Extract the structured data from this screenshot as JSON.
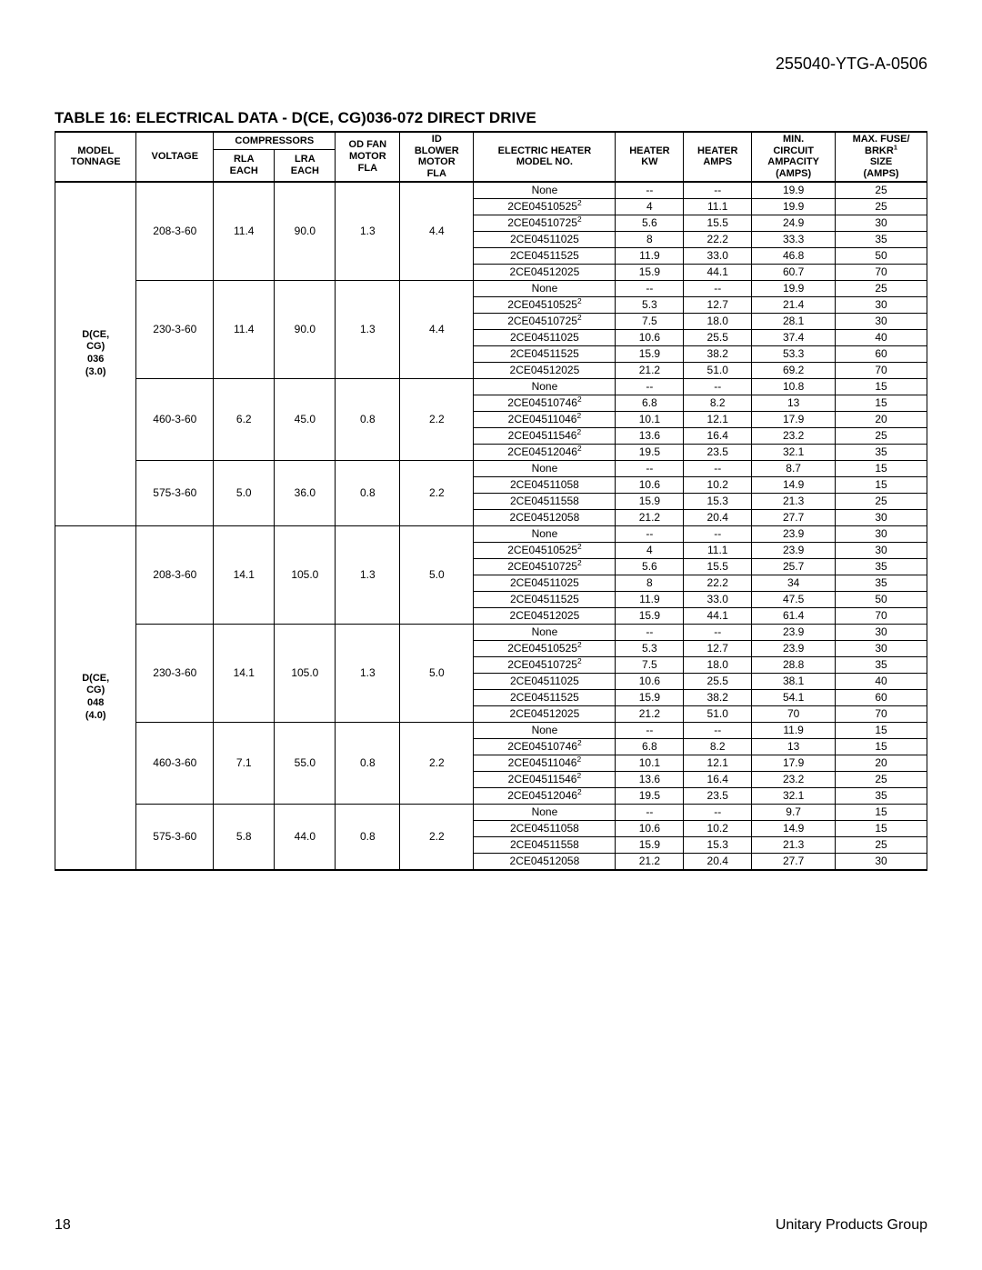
{
  "docId": "255040-YTG-A-0506",
  "tableTitle": "TABLE 16: ELECTRICAL DATA - D(CE, CG)036-072 DIRECT DRIVE",
  "footerLeft": "18",
  "footerRight": "Unitary Products Group",
  "headers": {
    "modelTonnage": "MODEL TONNAGE",
    "voltage": "VOLTAGE",
    "compressors": "COMPRESSORS",
    "rlaEach": "RLA EACH",
    "lraEach": "LRA EACH",
    "odFanMotorFla": "OD FAN MOTOR FLA",
    "idBlowerMotorFla": "ID BLOWER MOTOR FLA",
    "electricHeaterModel": "ELECTRIC HEATER MODEL NO.",
    "heaterKw": "HEATER KW",
    "heaterAmps": "HEATER AMPS",
    "minCircuitAmpacity": "MIN. CIRCUIT AMPACITY (AMPS)",
    "maxFuseBrkrSize": "MAX. FUSE/ BRKR¹ SIZE (AMPS)"
  },
  "modelBlocks": [
    {
      "model": "D(CE, CG) 036 (3.0)",
      "voltages": [
        {
          "voltage": "208-3-60",
          "rla": "11.4",
          "lra": "90.0",
          "odFan": "1.3",
          "idBlower": "4.4",
          "rows": [
            {
              "heaterModel": "None",
              "sup": "",
              "kw": "--",
              "amps": "--",
              "mca": "19.9",
              "fuse": "25"
            },
            {
              "heaterModel": "2CE04510525",
              "sup": "2",
              "kw": "4",
              "amps": "11.1",
              "mca": "19.9",
              "fuse": "25"
            },
            {
              "heaterModel": "2CE04510725",
              "sup": "2",
              "kw": "5.6",
              "amps": "15.5",
              "mca": "24.9",
              "fuse": "30"
            },
            {
              "heaterModel": "2CE04511025",
              "sup": "",
              "kw": "8",
              "amps": "22.2",
              "mca": "33.3",
              "fuse": "35"
            },
            {
              "heaterModel": "2CE04511525",
              "sup": "",
              "kw": "11.9",
              "amps": "33.0",
              "mca": "46.8",
              "fuse": "50"
            },
            {
              "heaterModel": "2CE04512025",
              "sup": "",
              "kw": "15.9",
              "amps": "44.1",
              "mca": "60.7",
              "fuse": "70"
            }
          ]
        },
        {
          "voltage": "230-3-60",
          "rla": "11.4",
          "lra": "90.0",
          "odFan": "1.3",
          "idBlower": "4.4",
          "rows": [
            {
              "heaterModel": "None",
              "sup": "",
              "kw": "--",
              "amps": "--",
              "mca": "19.9",
              "fuse": "25"
            },
            {
              "heaterModel": "2CE04510525",
              "sup": "2",
              "kw": "5.3",
              "amps": "12.7",
              "mca": "21.4",
              "fuse": "30"
            },
            {
              "heaterModel": "2CE04510725",
              "sup": "2",
              "kw": "7.5",
              "amps": "18.0",
              "mca": "28.1",
              "fuse": "30"
            },
            {
              "heaterModel": "2CE04511025",
              "sup": "",
              "kw": "10.6",
              "amps": "25.5",
              "mca": "37.4",
              "fuse": "40"
            },
            {
              "heaterModel": "2CE04511525",
              "sup": "",
              "kw": "15.9",
              "amps": "38.2",
              "mca": "53.3",
              "fuse": "60"
            },
            {
              "heaterModel": "2CE04512025",
              "sup": "",
              "kw": "21.2",
              "amps": "51.0",
              "mca": "69.2",
              "fuse": "70"
            }
          ]
        },
        {
          "voltage": "460-3-60",
          "rla": "6.2",
          "lra": "45.0",
          "odFan": "0.8",
          "idBlower": "2.2",
          "rows": [
            {
              "heaterModel": "None",
              "sup": "",
              "kw": "--",
              "amps": "--",
              "mca": "10.8",
              "fuse": "15"
            },
            {
              "heaterModel": "2CE04510746",
              "sup": "2",
              "kw": "6.8",
              "amps": "8.2",
              "mca": "13",
              "fuse": "15"
            },
            {
              "heaterModel": "2CE04511046",
              "sup": "2",
              "kw": "10.1",
              "amps": "12.1",
              "mca": "17.9",
              "fuse": "20"
            },
            {
              "heaterModel": "2CE04511546",
              "sup": "2",
              "kw": "13.6",
              "amps": "16.4",
              "mca": "23.2",
              "fuse": "25"
            },
            {
              "heaterModel": "2CE04512046",
              "sup": "2",
              "kw": "19.5",
              "amps": "23.5",
              "mca": "32.1",
              "fuse": "35"
            }
          ]
        },
        {
          "voltage": "575-3-60",
          "rla": "5.0",
          "lra": "36.0",
          "odFan": "0.8",
          "idBlower": "2.2",
          "rows": [
            {
              "heaterModel": "None",
              "sup": "",
              "kw": "--",
              "amps": "--",
              "mca": "8.7",
              "fuse": "15"
            },
            {
              "heaterModel": "2CE04511058",
              "sup": "",
              "kw": "10.6",
              "amps": "10.2",
              "mca": "14.9",
              "fuse": "15"
            },
            {
              "heaterModel": "2CE04511558",
              "sup": "",
              "kw": "15.9",
              "amps": "15.3",
              "mca": "21.3",
              "fuse": "25"
            },
            {
              "heaterModel": "2CE04512058",
              "sup": "",
              "kw": "21.2",
              "amps": "20.4",
              "mca": "27.7",
              "fuse": "30"
            }
          ]
        }
      ]
    },
    {
      "model": "D(CE, CG) 048 (4.0)",
      "voltages": [
        {
          "voltage": "208-3-60",
          "rla": "14.1",
          "lra": "105.0",
          "odFan": "1.3",
          "idBlower": "5.0",
          "rows": [
            {
              "heaterModel": "None",
              "sup": "",
              "kw": "--",
              "amps": "--",
              "mca": "23.9",
              "fuse": "30"
            },
            {
              "heaterModel": "2CE04510525",
              "sup": "2",
              "kw": "4",
              "amps": "11.1",
              "mca": "23.9",
              "fuse": "30"
            },
            {
              "heaterModel": "2CE04510725",
              "sup": "2",
              "kw": "5.6",
              "amps": "15.5",
              "mca": "25.7",
              "fuse": "35"
            },
            {
              "heaterModel": "2CE04511025",
              "sup": "",
              "kw": "8",
              "amps": "22.2",
              "mca": "34",
              "fuse": "35"
            },
            {
              "heaterModel": "2CE04511525",
              "sup": "",
              "kw": "11.9",
              "amps": "33.0",
              "mca": "47.5",
              "fuse": "50"
            },
            {
              "heaterModel": "2CE04512025",
              "sup": "",
              "kw": "15.9",
              "amps": "44.1",
              "mca": "61.4",
              "fuse": "70"
            }
          ]
        },
        {
          "voltage": "230-3-60",
          "rla": "14.1",
          "lra": "105.0",
          "odFan": "1.3",
          "idBlower": "5.0",
          "rows": [
            {
              "heaterModel": "None",
              "sup": "",
              "kw": "--",
              "amps": "--",
              "mca": "23.9",
              "fuse": "30"
            },
            {
              "heaterModel": "2CE04510525",
              "sup": "2",
              "kw": "5.3",
              "amps": "12.7",
              "mca": "23.9",
              "fuse": "30"
            },
            {
              "heaterModel": "2CE04510725",
              "sup": "2",
              "kw": "7.5",
              "amps": "18.0",
              "mca": "28.8",
              "fuse": "35"
            },
            {
              "heaterModel": "2CE04511025",
              "sup": "",
              "kw": "10.6",
              "amps": "25.5",
              "mca": "38.1",
              "fuse": "40"
            },
            {
              "heaterModel": "2CE04511525",
              "sup": "",
              "kw": "15.9",
              "amps": "38.2",
              "mca": "54.1",
              "fuse": "60"
            },
            {
              "heaterModel": "2CE04512025",
              "sup": "",
              "kw": "21.2",
              "amps": "51.0",
              "mca": "70",
              "fuse": "70"
            }
          ]
        },
        {
          "voltage": "460-3-60",
          "rla": "7.1",
          "lra": "55.0",
          "odFan": "0.8",
          "idBlower": "2.2",
          "rows": [
            {
              "heaterModel": "None",
              "sup": "",
              "kw": "--",
              "amps": "--",
              "mca": "11.9",
              "fuse": "15"
            },
            {
              "heaterModel": "2CE04510746",
              "sup": "2",
              "kw": "6.8",
              "amps": "8.2",
              "mca": "13",
              "fuse": "15"
            },
            {
              "heaterModel": "2CE04511046",
              "sup": "2",
              "kw": "10.1",
              "amps": "12.1",
              "mca": "17.9",
              "fuse": "20"
            },
            {
              "heaterModel": "2CE04511546",
              "sup": "2",
              "kw": "13.6",
              "amps": "16.4",
              "mca": "23.2",
              "fuse": "25"
            },
            {
              "heaterModel": "2CE04512046",
              "sup": "2",
              "kw": "19.5",
              "amps": "23.5",
              "mca": "32.1",
              "fuse": "35"
            }
          ]
        },
        {
          "voltage": "575-3-60",
          "rla": "5.8",
          "lra": "44.0",
          "odFan": "0.8",
          "idBlower": "2.2",
          "rows": [
            {
              "heaterModel": "None",
              "sup": "",
              "kw": "--",
              "amps": "--",
              "mca": "9.7",
              "fuse": "15"
            },
            {
              "heaterModel": "2CE04511058",
              "sup": "",
              "kw": "10.6",
              "amps": "10.2",
              "mca": "14.9",
              "fuse": "15"
            },
            {
              "heaterModel": "2CE04511558",
              "sup": "",
              "kw": "15.9",
              "amps": "15.3",
              "mca": "21.3",
              "fuse": "25"
            },
            {
              "heaterModel": "2CE04512058",
              "sup": "",
              "kw": "21.2",
              "amps": "20.4",
              "mca": "27.7",
              "fuse": "30"
            }
          ]
        }
      ]
    }
  ]
}
